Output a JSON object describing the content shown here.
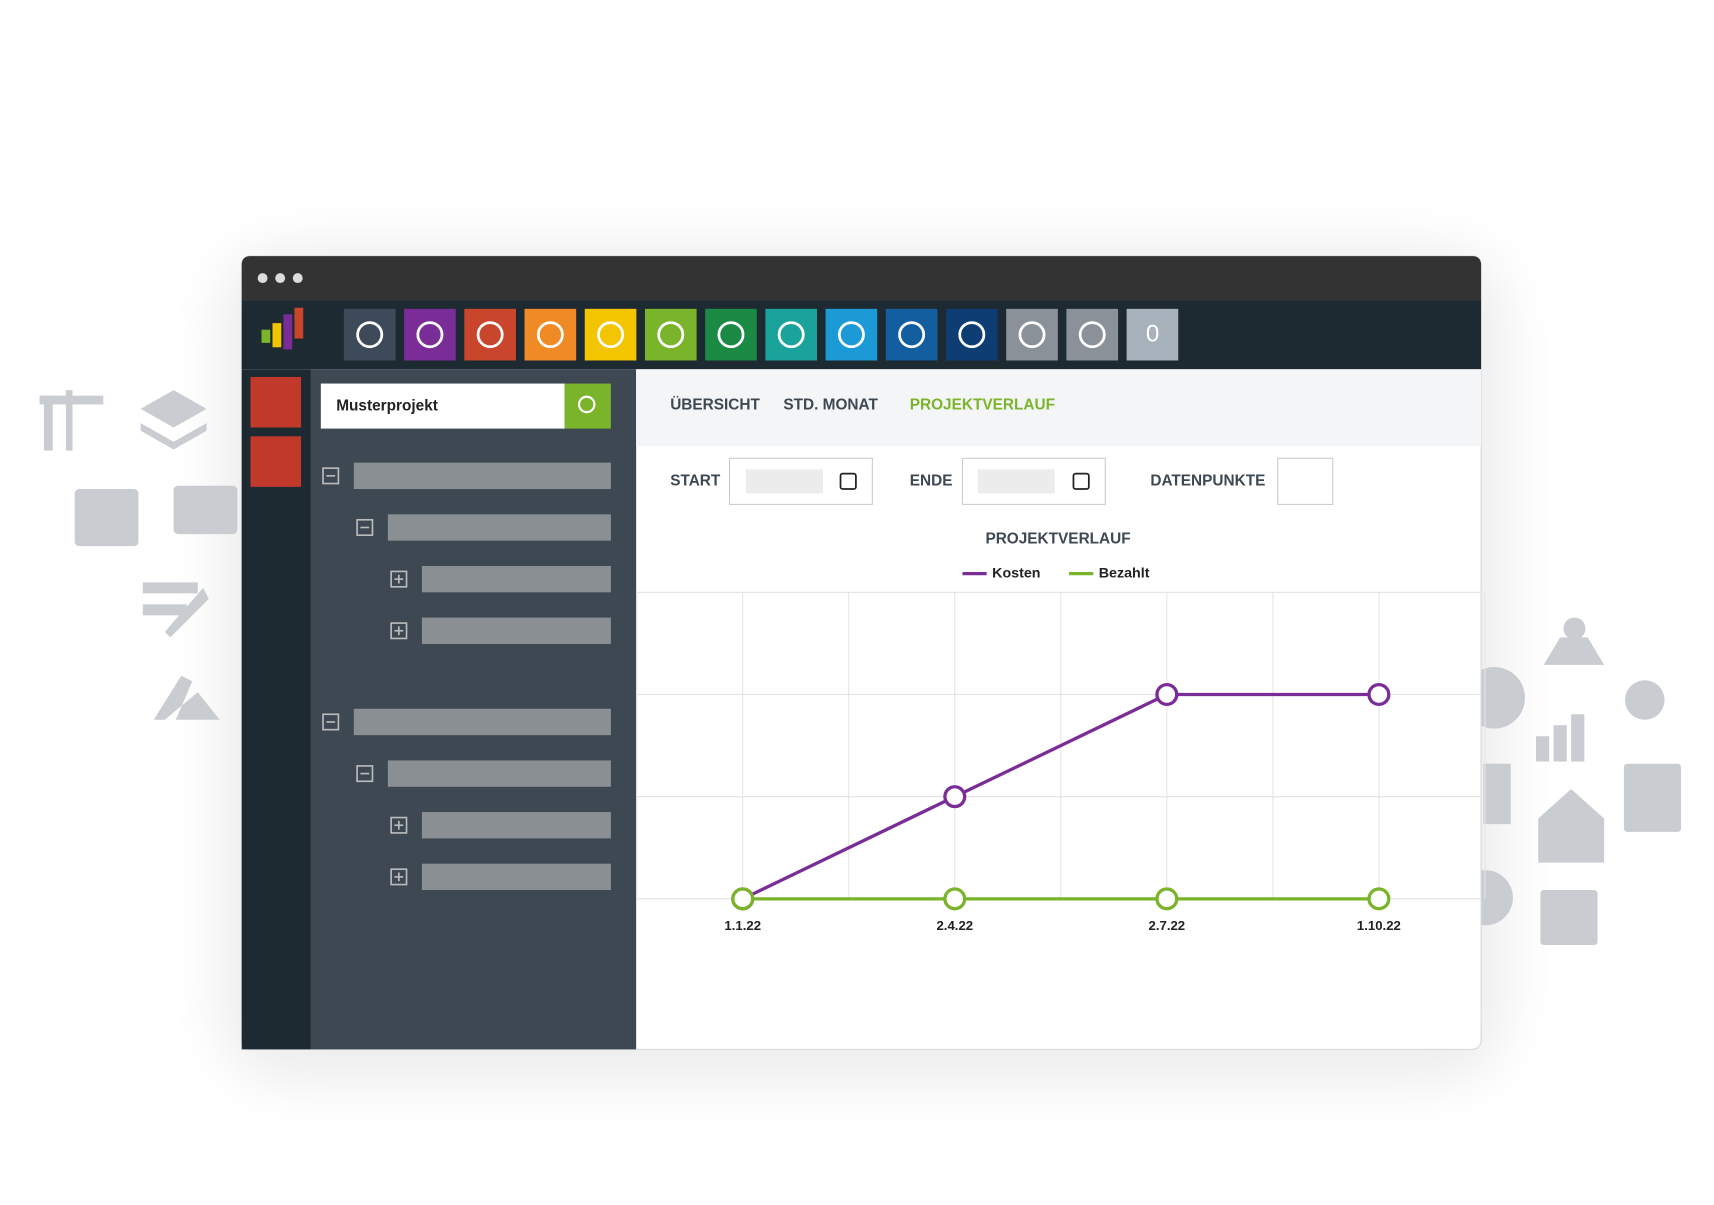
{
  "search": {
    "value": "Musterprojekt"
  },
  "badge": "0",
  "tabs": [
    "ÜBERSICHT",
    "STD. MONAT",
    "PROJEKTVERLAUF"
  ],
  "filters": [
    "START",
    "ENDE",
    "DATENPUNKTE"
  ],
  "chart_data": {
    "type": "line",
    "title": "PROJEKTVERLAUF",
    "categories": [
      "1.1.22",
      "2.4.22",
      "2.7.22",
      "1.10.22"
    ],
    "series": [
      {
        "name": "Kosten",
        "color": "#7b2d97",
        "values": [
          0,
          1,
          2,
          2
        ]
      },
      {
        "name": "Bezahlt",
        "color": "#7ab42a",
        "values": [
          0,
          0,
          0,
          0
        ]
      }
    ],
    "ylim": [
      0,
      3
    ],
    "yticks": [
      0,
      1,
      2,
      3
    ],
    "grid": true
  }
}
